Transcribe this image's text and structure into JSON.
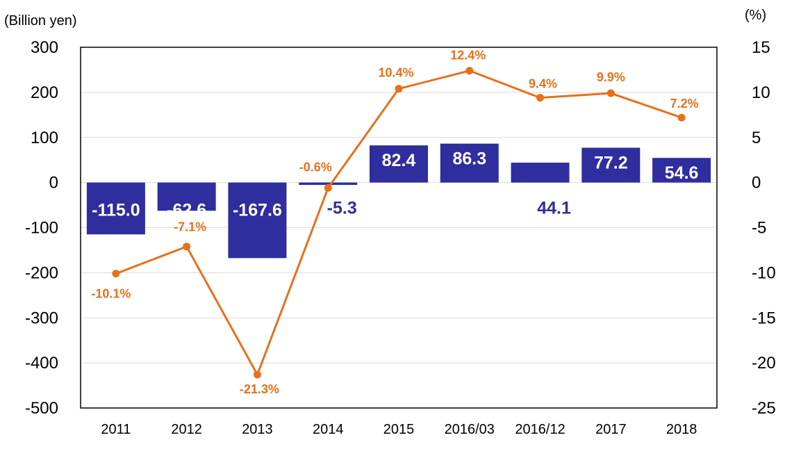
{
  "chart_data": {
    "type": "bar+line",
    "categories": [
      "2011",
      "2012",
      "2013",
      "2014",
      "2015",
      "2016/03",
      "2016/12",
      "2017",
      "2018"
    ],
    "left_axis": {
      "unit_label": "(Billion yen)",
      "ylim": [
        -500,
        300
      ],
      "ticks": [
        "300",
        "200",
        "100",
        "0",
        "-100",
        "-200",
        "-300",
        "-400",
        "-500"
      ]
    },
    "right_axis": {
      "unit_label": "(%)",
      "ylim": [
        -25,
        15
      ],
      "ticks": [
        "15",
        "10",
        "5",
        "0",
        "-5",
        "-10",
        "-15",
        "-20",
        "-25"
      ]
    },
    "grid": true,
    "series": [
      {
        "type": "bar",
        "axis": "left",
        "color": "#2e2e9e",
        "values": [
          -115.0,
          -62.6,
          -167.6,
          -5.3,
          82.4,
          86.3,
          44.1,
          77.2,
          54.6
        ],
        "labels": [
          "-115.0",
          "-62.6",
          "-167.6",
          "-5.3",
          "82.4",
          "86.3",
          "44.1",
          "77.2",
          "54.6"
        ]
      },
      {
        "type": "line",
        "axis": "right",
        "color": "#e8701a",
        "values": [
          -10.1,
          -7.1,
          -21.3,
          -0.6,
          10.4,
          12.4,
          9.4,
          9.9,
          7.2
        ],
        "labels": [
          "-10.1%",
          "-7.1%",
          "-21.3%",
          "-0.6%",
          "10.4%",
          "12.4%",
          "9.4%",
          "9.9%",
          "7.2%"
        ]
      }
    ]
  }
}
